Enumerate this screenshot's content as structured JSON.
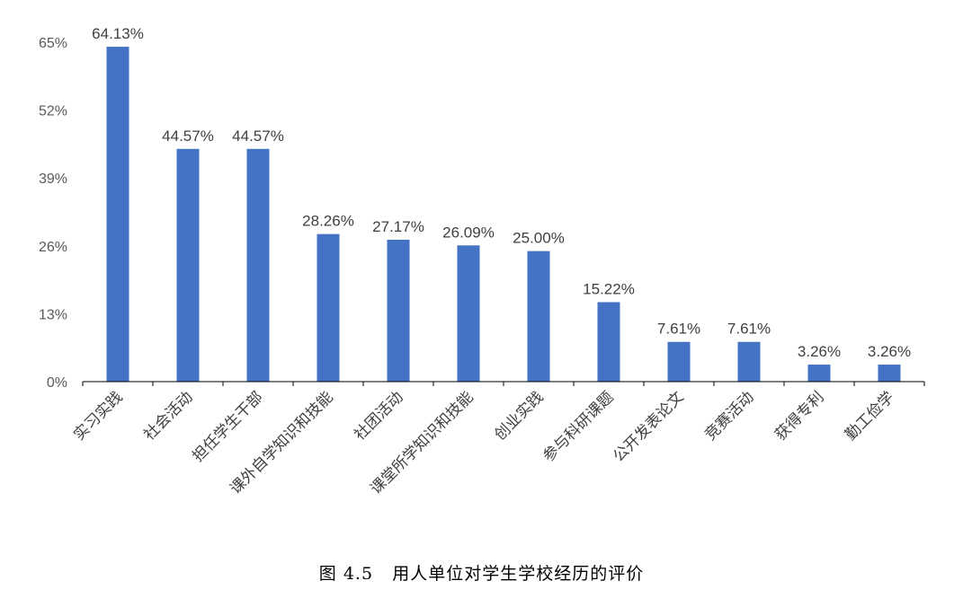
{
  "caption": {
    "figure_number": "图 4.5",
    "text": "用人单位对学生学校经历的评价"
  },
  "colors": {
    "bar": "#4472C4",
    "axis": "#000000",
    "tick_text": "#595959",
    "label_text": "#404040"
  },
  "chart_data": {
    "type": "bar",
    "title": "",
    "xlabel": "",
    "ylabel": "",
    "ylim": [
      0,
      65
    ],
    "yticks": [
      0,
      13,
      26,
      39,
      52,
      65
    ],
    "ytick_labels": [
      "0%",
      "13%",
      "26%",
      "39%",
      "52%",
      "65%"
    ],
    "grid": false,
    "legend": "none",
    "categories": [
      "实习实践",
      "社会活动",
      "担任学生干部",
      "课外自学知识和技能",
      "社团活动",
      "课堂所学知识和技能",
      "创业实践",
      "参与科研课题",
      "公开发表论文",
      "竞赛活动",
      "获得专利",
      "勤工俭学"
    ],
    "values": [
      64.13,
      44.57,
      44.57,
      28.26,
      27.17,
      26.09,
      25.0,
      15.22,
      7.61,
      7.61,
      3.26,
      3.26
    ],
    "data_labels": [
      "64.13%",
      "44.57%",
      "44.57%",
      "28.26%",
      "27.17%",
      "26.09%",
      "25.00%",
      "15.22%",
      "7.61%",
      "7.61%",
      "3.26%",
      "3.26%"
    ]
  }
}
